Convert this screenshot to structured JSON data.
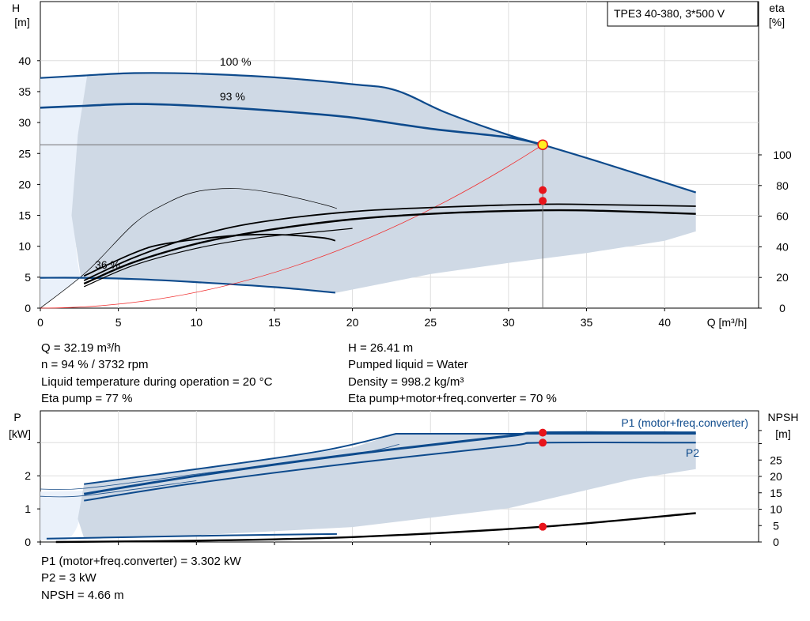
{
  "colors": {
    "curve_blue": "#0d4a8c",
    "band_fill": "#cfd9e5",
    "band_light": "#eaf1fa",
    "op_point": "#e8141b",
    "system_curve": "#f03030",
    "op_marker_fill": "#ffee22",
    "eta_black": "#000000"
  },
  "head_chart": {
    "title_box": "TPE3 40-380, 3*500 V",
    "y_left_label": "H",
    "y_left_unit": "[m]",
    "y_right_label": "eta",
    "y_right_unit": "[%]",
    "x_label": "Q [m³/h]",
    "x_ticks": [
      "0",
      "5",
      "10",
      "15",
      "20",
      "25",
      "30",
      "35",
      "40"
    ],
    "y_left_ticks": [
      "0",
      "5",
      "10",
      "15",
      "20",
      "25",
      "30",
      "35",
      "40"
    ],
    "y_right_ticks": [
      "0",
      "20",
      "40",
      "60",
      "80",
      "100"
    ],
    "speed_labels": [
      "100 %",
      "93 %",
      "36 %"
    ]
  },
  "info_left": [
    "Q = 32.19 m³/h",
    "n = 94 % / 3732 rpm",
    "Liquid temperature during operation = 20 °C",
    "Eta pump = 77 %"
  ],
  "info_right": [
    "H = 26.41 m",
    "Pumped liquid = Water",
    "Density = 998.2 kg/m³",
    "Eta pump+motor+freq.converter = 70 %"
  ],
  "power_chart": {
    "y_left_label": "P",
    "y_left_unit": "[kW]",
    "y_right_label": "NPSH",
    "y_right_unit": "[m]",
    "y_left_ticks": [
      "0",
      "1",
      "2"
    ],
    "y_right_ticks": [
      "0",
      "5",
      "10",
      "15",
      "20",
      "25"
    ],
    "legend_p1": "P1 (motor+freq.converter)",
    "legend_p2": "P2"
  },
  "info_bottom": [
    "P1 (motor+freq.converter) = 3.302 kW",
    "P2 = 3 kW",
    "NPSH = 4.66 m"
  ],
  "chart_data": [
    {
      "type": "line",
      "title": "TPE3 40-380, 3*500 V",
      "xlabel": "Q [m³/h]",
      "ylabel": "H [m]",
      "y2label": "eta [%]",
      "xlim": [
        0,
        45
      ],
      "ylim": [
        0,
        45
      ],
      "y2lim": [
        0,
        100
      ],
      "grid": true,
      "series": [
        {
          "name": "100 %",
          "axis": "H",
          "points": [
            [
              0,
              37.2
            ],
            [
              2.8,
              37.6
            ],
            [
              6,
              38.0
            ],
            [
              10,
              37.9
            ],
            [
              15,
              37.3
            ],
            [
              20,
              36.2
            ],
            [
              22.8,
              35.2
            ],
            [
              26,
              31.6
            ],
            [
              30,
              28.0
            ],
            [
              32.19,
              26.41
            ],
            [
              36,
              23.5
            ],
            [
              42,
              18.7
            ]
          ]
        },
        {
          "name": "93 %",
          "axis": "H",
          "points": [
            [
              0,
              32.4
            ],
            [
              2.8,
              32.7
            ],
            [
              6,
              33.0
            ],
            [
              10,
              32.7
            ],
            [
              15,
              31.9
            ],
            [
              20,
              30.8
            ],
            [
              25,
              29.0
            ],
            [
              30,
              27.6
            ],
            [
              32.19,
              26.41
            ]
          ]
        },
        {
          "name": "36 %",
          "axis": "H",
          "points": [
            [
              0,
              4.9
            ],
            [
              2.6,
              4.9
            ],
            [
              6,
              4.7
            ],
            [
              10,
              4.2
            ],
            [
              15,
              3.4
            ],
            [
              18.9,
              2.5
            ]
          ]
        },
        {
          "name": "",
          "axis": "eta",
          "points": [
            [
              2.8,
              16
            ],
            [
              6,
              30
            ],
            [
              10,
              42
            ],
            [
              14,
              50
            ],
            [
              20,
              58
            ],
            [
              26,
              62
            ],
            [
              32.19,
              63.8
            ],
            [
              36,
              63.5
            ],
            [
              42,
              61.5
            ]
          ]
        },
        {
          "name": "",
          "axis": "eta",
          "points": [
            [
              2.8,
              18
            ],
            [
              6,
              33
            ],
            [
              10,
              47
            ],
            [
              14,
              56
            ],
            [
              20,
              63
            ],
            [
              26,
              66
            ],
            [
              32.19,
              67.8
            ],
            [
              36,
              67.5
            ],
            [
              42,
              66.5
            ]
          ]
        },
        {
          "name": "",
          "axis": "eta",
          "points": [
            [
              2.8,
              21
            ],
            [
              6,
              36
            ],
            [
              8,
              42
            ],
            [
              12,
              47
            ],
            [
              15,
              48
            ],
            [
              18,
              46
            ],
            [
              18.9,
              44
            ]
          ]
        },
        {
          "name": "",
          "axis": "eta",
          "points": [
            [
              0,
              0
            ],
            [
              3,
              24
            ],
            [
              6,
              55
            ],
            [
              8,
              68
            ],
            [
              10,
              76
            ],
            [
              12.5,
              78
            ],
            [
              15,
              75
            ],
            [
              18,
              68
            ],
            [
              19,
              65
            ]
          ]
        }
      ],
      "operating_point": {
        "Q": 32.19,
        "H": 26.41,
        "eta_pump": 77,
        "eta_total": 70
      }
    },
    {
      "type": "line",
      "xlabel": "Q [m³/h]",
      "ylabel": "P [kW]",
      "y2label": "NPSH [m]",
      "xlim": [
        0,
        45
      ],
      "ylim": [
        0,
        3.5
      ],
      "y2lim": [
        0,
        30
      ],
      "grid": true,
      "series": [
        {
          "name": "P1 (motor+freq.converter)",
          "axis": "P",
          "points": [
            [
              2.8,
              1.45
            ],
            [
              10,
              2.0
            ],
            [
              20,
              2.65
            ],
            [
              30,
              3.2
            ],
            [
              32.19,
              3.302
            ],
            [
              42,
              3.302
            ]
          ]
        },
        {
          "name": "P2",
          "axis": "P",
          "points": [
            [
              2.8,
              1.25
            ],
            [
              10,
              1.78
            ],
            [
              20,
              2.38
            ],
            [
              30,
              2.9
            ],
            [
              32.19,
              3.0
            ],
            [
              42,
              3.0
            ]
          ]
        },
        {
          "name": "",
          "axis": "NPSH",
          "points": [
            [
              1,
              0
            ],
            [
              10,
              0.4
            ],
            [
              20,
              1.5
            ],
            [
              32.19,
              4.66
            ],
            [
              42,
              8.8
            ]
          ]
        }
      ],
      "operating_point": {
        "Q": 32.19,
        "P1": 3.302,
        "P2": 3.0,
        "NPSH": 4.66
      }
    }
  ]
}
